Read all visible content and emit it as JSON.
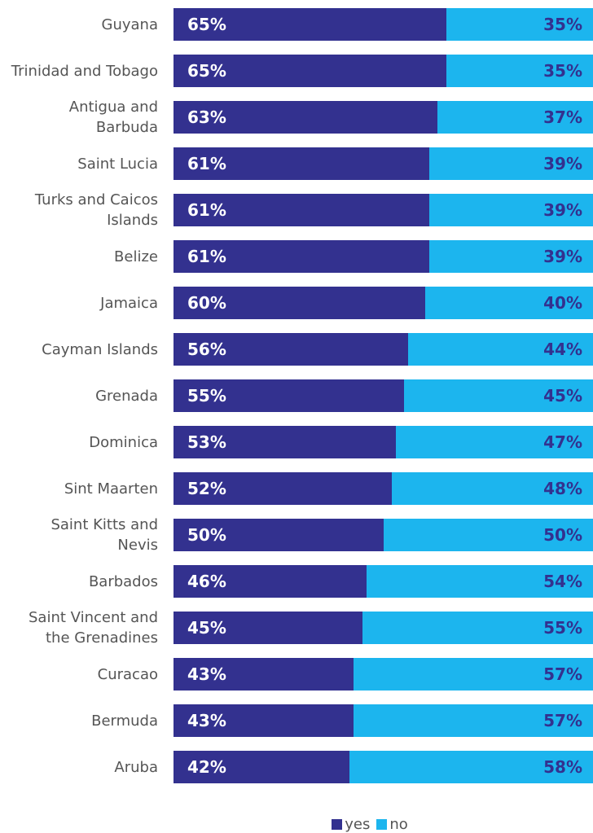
{
  "chart_data": {
    "type": "stacked-bar-horizontal",
    "categories": [
      "Guyana",
      "Trinidad and Tobago",
      "Antigua and Barbuda",
      "Saint Lucia",
      "Turks and Caicos Islands",
      "Belize",
      "Jamaica",
      "Cayman Islands",
      "Grenada",
      "Dominica",
      "Sint Maarten",
      "Saint Kitts and Nevis",
      "Barbados",
      "Saint Vincent and the Grenadines",
      "Curacao",
      "Bermuda",
      "Aruba"
    ],
    "series": [
      {
        "name": "yes",
        "color": "#33318f",
        "values": [
          65,
          65,
          63,
          61,
          61,
          61,
          60,
          56,
          55,
          53,
          52,
          50,
          46,
          45,
          43,
          43,
          42
        ],
        "value_labels": [
          "65%",
          "65%",
          "63%",
          "61%",
          "61%",
          "61%",
          "60%",
          "56%",
          "55%",
          "53%",
          "52%",
          "50%",
          "46%",
          "45%",
          "43%",
          "43%",
          "42%"
        ]
      },
      {
        "name": "no",
        "color": "#1cb5ee",
        "values": [
          35,
          35,
          37,
          39,
          39,
          39,
          40,
          44,
          45,
          47,
          48,
          50,
          54,
          55,
          57,
          57,
          58
        ],
        "value_labels": [
          "35%",
          "35%",
          "37%",
          "39%",
          "39%",
          "39%",
          "40%",
          "44%",
          "45%",
          "47%",
          "48%",
          "50%",
          "54%",
          "55%",
          "57%",
          "57%",
          "58%"
        ]
      }
    ],
    "legend": "bottom"
  }
}
